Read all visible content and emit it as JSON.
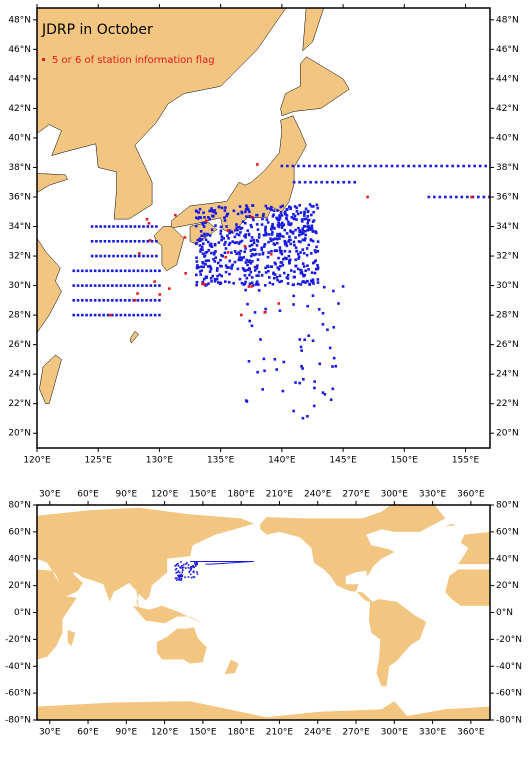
{
  "map_top": {
    "title": "JDRP in October",
    "legend": "5 or 6 of station information flag",
    "xlim": [
      120,
      157
    ],
    "ylim": [
      19,
      48.8
    ],
    "xticks": [
      {
        "value": 120,
        "label": "120°E"
      },
      {
        "value": 125,
        "label": "125°E"
      },
      {
        "value": 130,
        "label": "130°E"
      },
      {
        "value": 135,
        "label": "135°E"
      },
      {
        "value": 140,
        "label": "140°E"
      },
      {
        "value": 145,
        "label": "145°E"
      },
      {
        "value": 150,
        "label": "150°E"
      },
      {
        "value": 155,
        "label": "155°E"
      }
    ],
    "yticks": [
      {
        "value": 20,
        "label": "20°N"
      },
      {
        "value": 22,
        "label": "22°N"
      },
      {
        "value": 24,
        "label": "24°N"
      },
      {
        "value": 26,
        "label": "26°N"
      },
      {
        "value": 28,
        "label": "28°N"
      },
      {
        "value": 30,
        "label": "30°N"
      },
      {
        "value": 32,
        "label": "32°N"
      },
      {
        "value": 34,
        "label": "34°N"
      },
      {
        "value": 36,
        "label": "36°N"
      },
      {
        "value": 38,
        "label": "38°N"
      },
      {
        "value": 40,
        "label": "40°N"
      },
      {
        "value": 42,
        "label": "42°N"
      },
      {
        "value": 44,
        "label": "44°N"
      },
      {
        "value": 46,
        "label": "46°N"
      },
      {
        "value": 48,
        "label": "48°N"
      }
    ]
  },
  "map_world": {
    "xlim": [
      20,
      375
    ],
    "ylim": [
      -80,
      80
    ],
    "xticks": [
      {
        "value": 30,
        "label": "30°E"
      },
      {
        "value": 60,
        "label": "60°E"
      },
      {
        "value": 90,
        "label": "90°E"
      },
      {
        "value": 120,
        "label": "120°E"
      },
      {
        "value": 150,
        "label": "150°E"
      },
      {
        "value": 180,
        "label": "180°E"
      },
      {
        "value": 210,
        "label": "210°E"
      },
      {
        "value": 240,
        "label": "240°E"
      },
      {
        "value": 270,
        "label": "270°E"
      },
      {
        "value": 300,
        "label": "300°E"
      },
      {
        "value": 330,
        "label": "330°E"
      },
      {
        "value": 360,
        "label": "360°E"
      }
    ],
    "yticks": [
      {
        "value": -80,
        "label": "-80°N"
      },
      {
        "value": -60,
        "label": "-60°N"
      },
      {
        "value": -40,
        "label": "-40°N"
      },
      {
        "value": -20,
        "label": "-20°N"
      },
      {
        "value": 0,
        "label": "0°N"
      },
      {
        "value": 20,
        "label": "20°N"
      },
      {
        "value": 40,
        "label": "40°N"
      },
      {
        "value": 60,
        "label": "60°N"
      },
      {
        "value": 80,
        "label": "80°N"
      }
    ]
  }
}
